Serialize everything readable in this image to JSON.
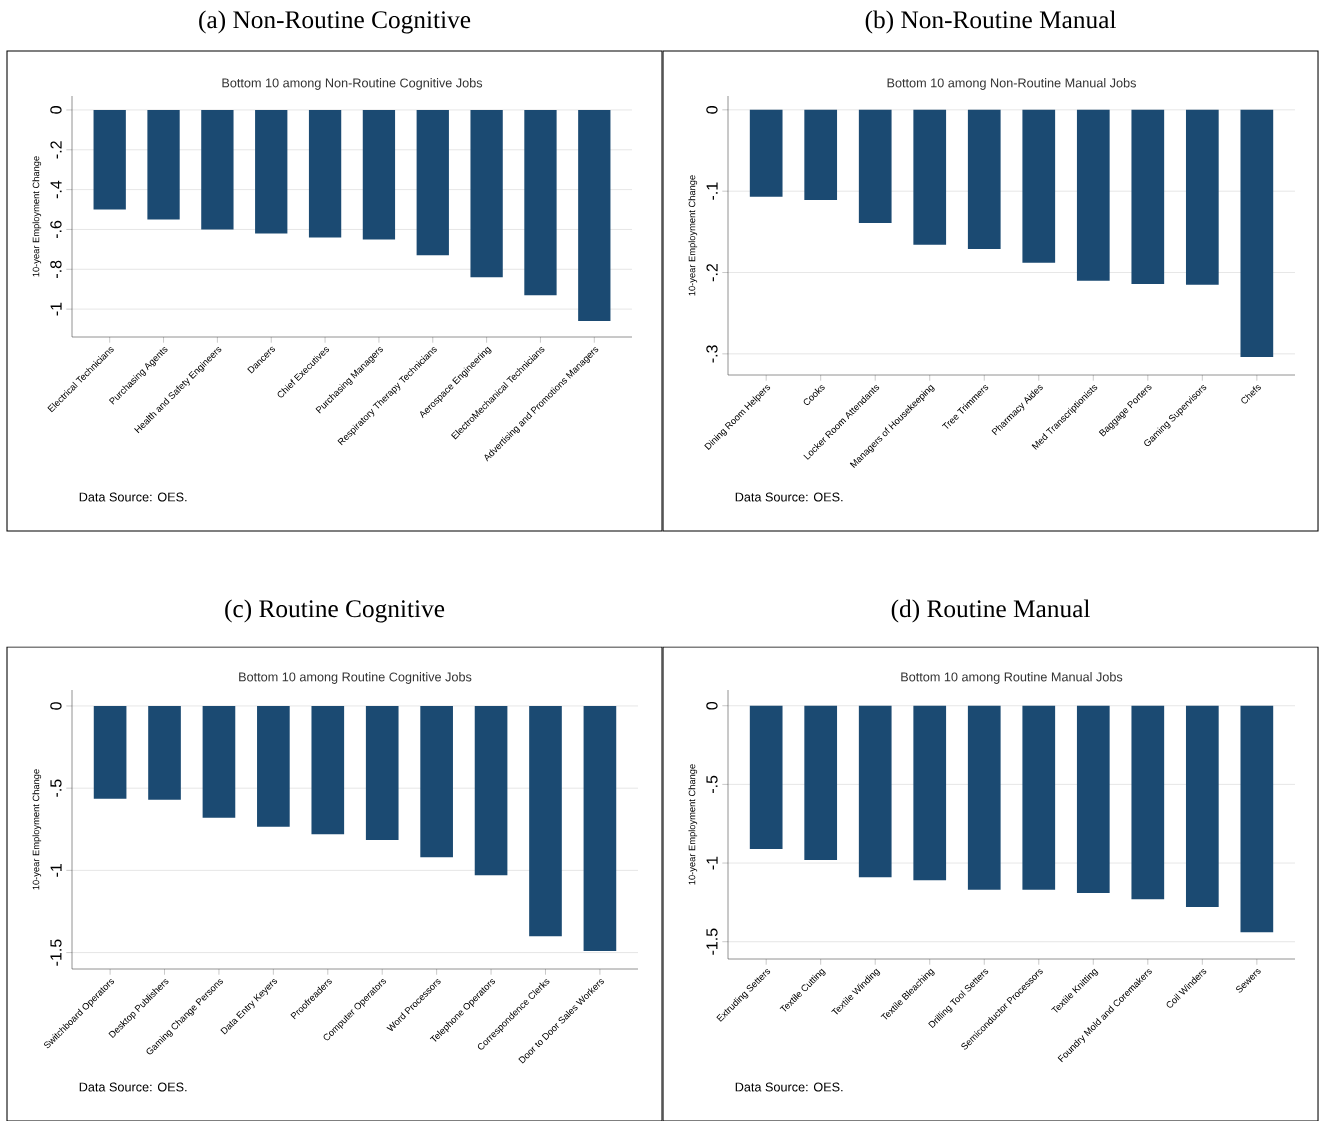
{
  "chart_data": [
    {
      "type": "bar",
      "title": "(a) Non-Routine Cognitive",
      "subtitle": "Bottom 10 among Non-Routine Cognitive Jobs",
      "ylabel": "10-year Employment Change",
      "annotations": [
        "Data Source: OES."
      ],
      "color": "#1b4a72",
      "grid": "y",
      "categories": [
        "Electrical Technicians",
        "Purchasing Agents",
        "Health and Safety Engineers",
        "Dancers",
        "Chief Executives",
        "Purchasing Managers",
        "Respiratory Therapy Technicians",
        "Aerospace Engineering",
        "ElectroMechanical Technicians",
        "Advertising and Promotions Managers"
      ],
      "values": [
        -0.5,
        -0.55,
        -0.6,
        -0.62,
        -0.64,
        -0.65,
        -0.73,
        -0.84,
        -0.93,
        -1.06
      ],
      "ylim": [
        -1.14,
        0.07
      ],
      "yticks": [
        0,
        {
          "value": -0.2,
          "label": "-.2"
        },
        {
          "value": -0.4,
          "label": "-.4"
        },
        {
          "value": -0.6,
          "label": "-.6"
        },
        {
          "value": -0.8,
          "label": "-.8"
        },
        -1
      ]
    },
    {
      "type": "bar",
      "title": "(b) Non-Routine Manual",
      "subtitle": "Bottom 10 among Non-Routine Manual Jobs",
      "ylabel": "10-year Employment Change",
      "annotations": [
        "Data Source: OES."
      ],
      "color": "#1b4a72",
      "grid": "y",
      "categories": [
        "Dining Room Helpers",
        "Cooks",
        "Locker Room Attendants",
        "Managers of Housekeeping",
        "Tree Trimmers",
        "Pharmacy Aides",
        "Med Transcriptionists",
        "Baggage Porters",
        "Gaming Supervisors",
        "Chefs"
      ],
      "values": [
        -0.107,
        -0.111,
        -0.139,
        -0.166,
        -0.171,
        -0.188,
        -0.21,
        -0.214,
        -0.215,
        -0.304
      ],
      "ylim": [
        -0.326,
        0.017
      ],
      "yticks": [
        0,
        {
          "value": -0.1,
          "label": "-.1"
        },
        {
          "value": -0.2,
          "label": "-.2"
        },
        {
          "value": -0.3,
          "label": "-.3"
        }
      ]
    },
    {
      "type": "bar",
      "title": "(c) Routine Cognitive",
      "subtitle": "Bottom 10 among Routine Cognitive Jobs",
      "ylabel": "10-year Employment Change",
      "annotations": [
        "Data Source: OES."
      ],
      "color": "#1b4a72",
      "grid": "y",
      "categories": [
        "Switchboard Operators",
        "Desktop Publishers",
        "Gaming Change Persons",
        "Data Entry Keyers",
        "Proofreaders",
        "Computer Operators",
        "Word Processors",
        "Telephone Operators",
        "Correspondence Clerks",
        "Door to Door Sales Workers"
      ],
      "values": [
        -0.565,
        -0.57,
        -0.68,
        -0.735,
        -0.78,
        -0.815,
        -0.92,
        -1.03,
        -1.4,
        -1.49
      ],
      "ylim": [
        -1.6,
        0.097
      ],
      "yticks": [
        0,
        {
          "value": -0.5,
          "label": "-.5"
        },
        -1,
        -1.5
      ]
    },
    {
      "type": "bar",
      "title": "(d) Routine Manual",
      "subtitle": "Bottom 10 among Routine Manual Jobs",
      "ylabel": "10-year Employment Change",
      "annotations": [
        "Data Source: OES."
      ],
      "color": "#1b4a72",
      "grid": "y",
      "categories": [
        "Extruding Setters",
        "Textile Cutting",
        "Textile Winding",
        "Textile Bleaching",
        "Drilling Tool Setters",
        "Semiconductor Processors",
        "Textile Knitting",
        "Foundry Mold and Coremakers",
        "Coil Winders",
        "Sewers"
      ],
      "values": [
        -0.91,
        -0.98,
        -1.09,
        -1.11,
        -1.17,
        -1.17,
        -1.19,
        -1.23,
        -1.28,
        -1.44
      ],
      "ylim": [
        -1.61,
        0.1
      ],
      "yticks": [
        0,
        {
          "value": -0.5,
          "label": "-.5"
        },
        -1,
        -1.5
      ]
    }
  ]
}
